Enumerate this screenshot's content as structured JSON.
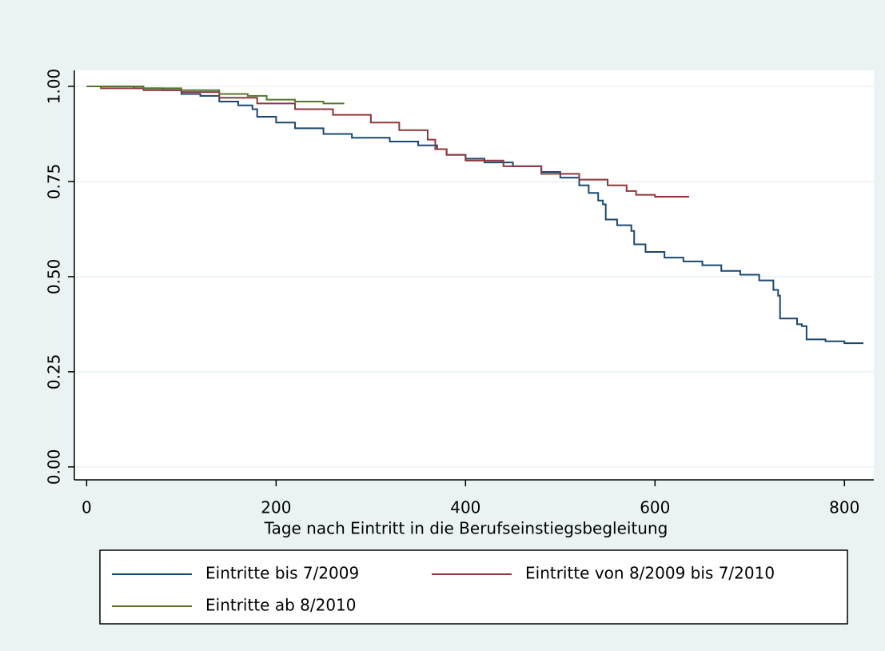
{
  "chart_data": {
    "type": "line",
    "xlabel": "Tage nach Eintritt in die Berufseinstiegsbegleitung",
    "xlim": [
      -13,
      831
    ],
    "ylim": [
      -0.034,
      1.042
    ],
    "xticks": [
      0,
      200,
      400,
      600,
      800
    ],
    "yticks": [
      {
        "value": 0,
        "label": "0.00"
      },
      {
        "value": 0.25,
        "label": "0.25"
      },
      {
        "value": 0.5,
        "label": "0.50"
      },
      {
        "value": 0.75,
        "label": "0.75"
      },
      {
        "value": 1,
        "label": "1.00"
      }
    ],
    "grid": true,
    "step": true,
    "series": [
      {
        "name": "Eintritte bis 7/2009",
        "color": "#1a476f",
        "x": [
          0,
          50,
          80,
          100,
          120,
          140,
          160,
          175,
          180,
          200,
          220,
          250,
          280,
          320,
          350,
          370,
          380,
          400,
          420,
          450,
          480,
          500,
          520,
          530,
          540,
          545,
          548,
          560,
          575,
          578,
          590,
          610,
          630,
          650,
          670,
          690,
          710,
          725,
          730,
          732,
          750,
          755,
          760,
          780,
          800,
          820
        ],
        "values": [
          1.0,
          0.995,
          0.99,
          0.98,
          0.975,
          0.96,
          0.95,
          0.94,
          0.92,
          0.905,
          0.89,
          0.875,
          0.865,
          0.855,
          0.845,
          0.835,
          0.82,
          0.81,
          0.8,
          0.79,
          0.775,
          0.76,
          0.74,
          0.72,
          0.7,
          0.69,
          0.65,
          0.635,
          0.62,
          0.585,
          0.565,
          0.55,
          0.54,
          0.53,
          0.515,
          0.505,
          0.49,
          0.465,
          0.45,
          0.39,
          0.375,
          0.37,
          0.335,
          0.33,
          0.325,
          0.325
        ]
      },
      {
        "name": "Eintritte von 8/2009 bis 7/2010",
        "color": "#90353b",
        "x": [
          0,
          15,
          60,
          100,
          140,
          180,
          220,
          260,
          300,
          330,
          360,
          368,
          380,
          400,
          440,
          480,
          520,
          550,
          570,
          580,
          600,
          636
        ],
        "values": [
          1.0,
          0.995,
          0.99,
          0.985,
          0.97,
          0.955,
          0.94,
          0.925,
          0.905,
          0.885,
          0.86,
          0.835,
          0.82,
          0.805,
          0.79,
          0.77,
          0.755,
          0.74,
          0.725,
          0.715,
          0.71,
          0.71
        ]
      },
      {
        "name": "Eintritte ab 8/2010",
        "color": "#55752f",
        "x": [
          0,
          60,
          100,
          140,
          170,
          190,
          220,
          250,
          272
        ],
        "values": [
          1.0,
          0.995,
          0.99,
          0.98,
          0.975,
          0.965,
          0.96,
          0.955,
          0.955
        ]
      }
    ]
  }
}
